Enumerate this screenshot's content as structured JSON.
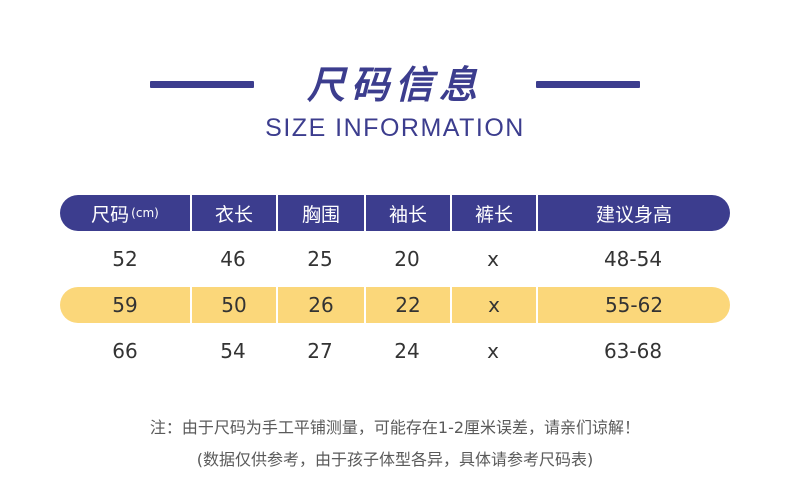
{
  "title": {
    "cn": "尺码信息",
    "en": "SIZE INFORMATION"
  },
  "table": {
    "headers": [
      "尺码",
      "衣长",
      "胸围",
      "袖长",
      "裤长",
      "建议身高"
    ],
    "size_unit": "(cm)",
    "rows": [
      [
        "52",
        "46",
        "25",
        "20",
        "x",
        "48-54"
      ],
      [
        "59",
        "50",
        "26",
        "22",
        "x",
        "55-62"
      ],
      [
        "66",
        "54",
        "27",
        "24",
        "x",
        "63-68"
      ]
    ]
  },
  "notes": [
    "注：由于尺码为手工平铺测量，可能存在1-2厘米误差，请亲们谅解！",
    "(数据仅供参考，由于孩子体型各异，具体请参考尺码表)"
  ],
  "colors": {
    "primary": "#3c3d8e",
    "highlight": "#fbd77a",
    "text": "#333333"
  }
}
